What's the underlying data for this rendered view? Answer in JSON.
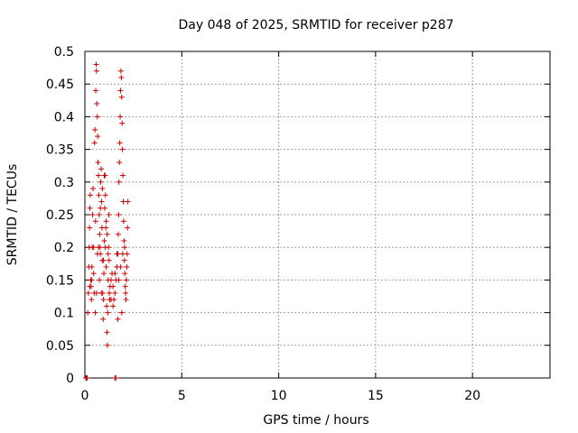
{
  "chart_data": {
    "type": "scatter",
    "title": "Day 048 of 2025, SRMTID for receiver p287",
    "xlabel": "GPS time / hours",
    "ylabel": "SRMTID / TECUs",
    "xlim": [
      0,
      24
    ],
    "ylim": [
      0,
      0.5
    ],
    "x_ticks": [
      0,
      5,
      10,
      15,
      20
    ],
    "x_tick_labels": [
      "0",
      "5",
      "10",
      "15",
      "20"
    ],
    "y_ticks": [
      0,
      0.05,
      0.1,
      0.15,
      0.2,
      0.25,
      0.3,
      0.35,
      0.4,
      0.45,
      0.5
    ],
    "y_tick_labels": [
      "0",
      "0.05",
      "0.1",
      "0.15",
      "0.2",
      "0.25",
      "0.3",
      "0.35",
      "0.4",
      "0.45",
      "0.5"
    ],
    "grid": true,
    "marker": "+",
    "color": "#cc0000",
    "series": [
      {
        "name": "SRMTID",
        "points": [
          [
            0.05,
            0.0
          ],
          [
            0.08,
            0.0
          ],
          [
            0.12,
            0.0
          ],
          [
            1.55,
            0.0
          ],
          [
            1.6,
            0.0
          ],
          [
            0.15,
            0.1
          ],
          [
            0.18,
            0.13
          ],
          [
            0.2,
            0.17
          ],
          [
            0.22,
            0.2
          ],
          [
            0.24,
            0.23
          ],
          [
            0.26,
            0.26
          ],
          [
            0.28,
            0.28
          ],
          [
            0.3,
            0.15
          ],
          [
            0.32,
            0.14
          ],
          [
            0.34,
            0.12
          ],
          [
            0.36,
            0.17
          ],
          [
            0.38,
            0.2
          ],
          [
            0.4,
            0.25
          ],
          [
            0.42,
            0.29
          ],
          [
            0.45,
            0.16
          ],
          [
            0.48,
            0.13
          ],
          [
            0.5,
            0.36
          ],
          [
            0.52,
            0.38
          ],
          [
            0.54,
            0.1
          ],
          [
            0.56,
            0.44
          ],
          [
            0.58,
            0.48
          ],
          [
            0.6,
            0.47
          ],
          [
            0.62,
            0.42
          ],
          [
            0.64,
            0.4
          ],
          [
            0.66,
            0.37
          ],
          [
            0.68,
            0.33
          ],
          [
            0.7,
            0.31
          ],
          [
            0.72,
            0.28
          ],
          [
            0.74,
            0.25
          ],
          [
            0.76,
            0.22
          ],
          [
            0.78,
            0.2
          ],
          [
            0.8,
            0.19
          ],
          [
            0.82,
            0.3
          ],
          [
            0.84,
            0.32
          ],
          [
            0.86,
            0.27
          ],
          [
            0.88,
            0.23
          ],
          [
            0.9,
            0.18
          ],
          [
            0.92,
            0.13
          ],
          [
            0.94,
            0.09
          ],
          [
            0.96,
            0.12
          ],
          [
            0.98,
            0.16
          ],
          [
            1.0,
            0.21
          ],
          [
            1.02,
            0.26
          ],
          [
            1.04,
            0.31
          ],
          [
            1.06,
            0.28
          ],
          [
            1.08,
            0.23
          ],
          [
            1.1,
            0.17
          ],
          [
            1.12,
            0.11
          ],
          [
            1.14,
            0.07
          ],
          [
            1.16,
            0.05
          ],
          [
            1.18,
            0.1
          ],
          [
            1.2,
            0.15
          ],
          [
            1.22,
            0.2
          ],
          [
            1.24,
            0.25
          ],
          [
            1.26,
            0.13
          ],
          [
            1.28,
            0.12
          ],
          [
            1.3,
            0.14
          ],
          [
            1.35,
            0.15
          ],
          [
            1.4,
            0.16
          ],
          [
            1.45,
            0.11
          ],
          [
            1.5,
            0.12
          ],
          [
            1.55,
            0.13
          ],
          [
            1.6,
            0.15
          ],
          [
            1.65,
            0.17
          ],
          [
            1.7,
            0.19
          ],
          [
            1.72,
            0.22
          ],
          [
            1.74,
            0.25
          ],
          [
            1.76,
            0.3
          ],
          [
            1.78,
            0.33
          ],
          [
            1.8,
            0.36
          ],
          [
            1.82,
            0.4
          ],
          [
            1.84,
            0.44
          ],
          [
            1.86,
            0.47
          ],
          [
            1.88,
            0.46
          ],
          [
            1.9,
            0.43
          ],
          [
            1.92,
            0.39
          ],
          [
            1.94,
            0.35
          ],
          [
            1.96,
            0.31
          ],
          [
            1.98,
            0.27
          ],
          [
            2.0,
            0.24
          ],
          [
            2.02,
            0.21
          ],
          [
            2.04,
            0.18
          ],
          [
            2.06,
            0.16
          ],
          [
            2.08,
            0.14
          ],
          [
            2.1,
            0.13
          ],
          [
            2.12,
            0.12
          ],
          [
            2.14,
            0.15
          ],
          [
            2.16,
            0.17
          ],
          [
            2.18,
            0.19
          ],
          [
            2.2,
            0.23
          ],
          [
            2.22,
            0.27
          ],
          [
            0.25,
            0.14
          ],
          [
            0.35,
            0.15
          ],
          [
            0.45,
            0.2
          ],
          [
            0.55,
            0.24
          ],
          [
            0.65,
            0.19
          ],
          [
            0.75,
            0.15
          ],
          [
            0.85,
            0.13
          ],
          [
            0.95,
            0.18
          ],
          [
            1.05,
            0.2
          ],
          [
            1.15,
            0.22
          ],
          [
            1.25,
            0.18
          ],
          [
            1.35,
            0.12
          ],
          [
            1.45,
            0.14
          ],
          [
            1.55,
            0.16
          ],
          [
            1.65,
            0.19
          ],
          [
            1.75,
            0.15
          ],
          [
            1.85,
            0.17
          ],
          [
            1.95,
            0.19
          ],
          [
            2.05,
            0.2
          ],
          [
            1.7,
            0.09
          ],
          [
            1.9,
            0.1
          ],
          [
            0.6,
            0.13
          ],
          [
            0.7,
            0.2
          ],
          [
            0.8,
            0.26
          ],
          [
            0.9,
            0.29
          ],
          [
            1.0,
            0.31
          ],
          [
            1.1,
            0.24
          ],
          [
            1.2,
            0.19
          ]
        ]
      }
    ]
  }
}
